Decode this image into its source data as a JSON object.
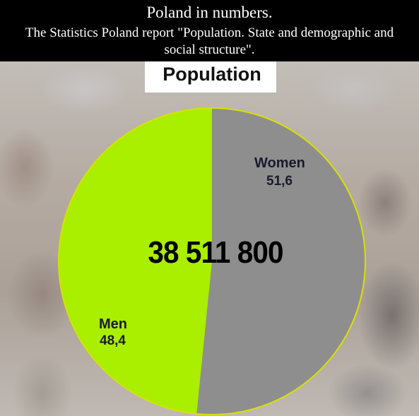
{
  "header": {
    "line1": "Poland in numbers.",
    "line2": "The Statistics Poland report \"Population. State and demographic and social structure\"."
  },
  "colors": {
    "men": "#aaee00",
    "women": "#8e8e8e",
    "background": "#000000"
  },
  "chart_data": {
    "type": "pie",
    "title": "Population",
    "total_label": "38 511 800",
    "slices": [
      {
        "label": "Women",
        "value": 51.6,
        "value_label": "51,6"
      },
      {
        "label": "Men",
        "value": 48.4,
        "value_label": "48,4"
      }
    ]
  }
}
